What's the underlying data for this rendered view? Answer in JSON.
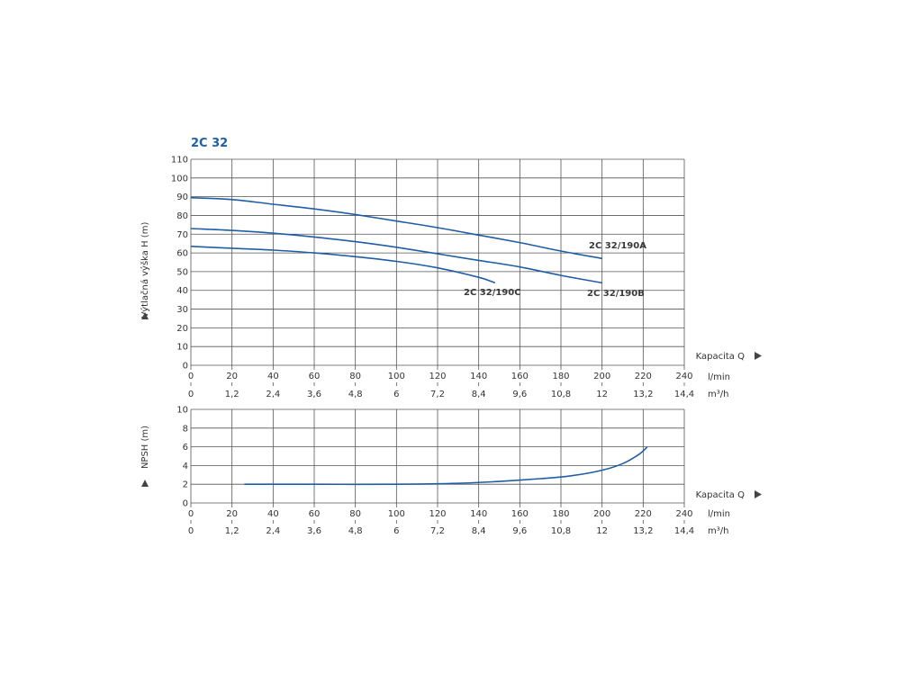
{
  "colors": {
    "title": "#1f5fa8",
    "curve": "#1f5ea6",
    "grid": "#555555",
    "text": "#333333",
    "arrow": "#444444"
  },
  "icons": {
    "axis_arrow_right": "triangle-right-icon",
    "axis_arrow_up": "triangle-up-icon"
  },
  "chart_data": [
    {
      "type": "line",
      "title": "2C 32",
      "ylabel": "Výtlačná výška H (m)",
      "xlabel": "Kapacita Q",
      "ylim": [
        0,
        110
      ],
      "yticks": [
        "0",
        "10",
        "20",
        "30",
        "40",
        "50",
        "60",
        "70",
        "80",
        "90",
        "100",
        "110"
      ],
      "xlim": [
        0,
        240
      ],
      "x_unit_primary": "l/min",
      "x_unit_secondary": "m³/h",
      "xticks_primary": [
        "0",
        "20",
        "40",
        "60",
        "80",
        "100",
        "120",
        "140",
        "160",
        "180",
        "200",
        "220",
        "240"
      ],
      "xticks_secondary": [
        "0",
        "1,2",
        "2,4",
        "3,6",
        "4,8",
        "6",
        "7,2",
        "8,4",
        "9,6",
        "10,8",
        "12",
        "13,2",
        "14,4"
      ],
      "grid": true,
      "series": [
        {
          "name": "2C 32/190A",
          "x": [
            0,
            20,
            40,
            60,
            80,
            100,
            120,
            140,
            160,
            180,
            200
          ],
          "y": [
            89.5,
            88.5,
            86,
            83.5,
            80.5,
            77,
            73.5,
            69.5,
            65.5,
            61,
            57
          ]
        },
        {
          "name": "2C 32/190B",
          "x": [
            0,
            20,
            40,
            60,
            80,
            100,
            120,
            140,
            160,
            180,
            200
          ],
          "y": [
            73,
            72,
            70.5,
            68.5,
            66,
            63,
            59.5,
            56,
            52.5,
            48,
            44
          ]
        },
        {
          "name": "2C 32/190C",
          "x": [
            0,
            20,
            40,
            60,
            80,
            100,
            120,
            140,
            148
          ],
          "y": [
            63.5,
            62.5,
            61.5,
            60,
            58,
            55.5,
            52,
            47,
            44
          ]
        }
      ]
    },
    {
      "type": "line",
      "ylabel": "NPSH (m)",
      "xlabel": "Kapacita Q",
      "ylim": [
        0,
        10
      ],
      "yticks": [
        "0",
        "2",
        "4",
        "6",
        "8",
        "10"
      ],
      "xlim": [
        0,
        240
      ],
      "x_unit_primary": "l/min",
      "x_unit_secondary": "m³/h",
      "xticks_primary": [
        "0",
        "20",
        "40",
        "60",
        "80",
        "100",
        "120",
        "140",
        "160",
        "180",
        "200",
        "220",
        "240"
      ],
      "xticks_secondary": [
        "0",
        "1,2",
        "2,4",
        "3,6",
        "4,8",
        "6",
        "7,2",
        "8,4",
        "9,6",
        "10,8",
        "12",
        "13,2",
        "14,4"
      ],
      "grid": true,
      "series": [
        {
          "x": [
            26,
            60,
            100,
            130,
            150,
            170,
            185,
            200,
            210,
            218,
            222
          ],
          "y": [
            2,
            2,
            2,
            2.1,
            2.3,
            2.6,
            2.9,
            3.5,
            4.2,
            5.2,
            6
          ]
        }
      ]
    }
  ]
}
